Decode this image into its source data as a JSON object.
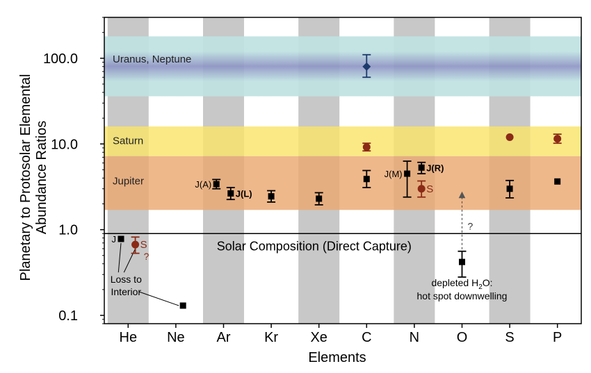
{
  "chart_data": {
    "type": "scatter",
    "title": "",
    "xlabel": "Elements",
    "ylabel_lines": [
      "Planetary to Protosolar Elemental",
      "Abundance Ratios"
    ],
    "y_scale": "log",
    "ylim": [
      0.08,
      300
    ],
    "yticks": [
      {
        "value": 0.1,
        "label": "0.1"
      },
      {
        "value": 1,
        "label": "1.0"
      },
      {
        "value": 10,
        "label": "10.0"
      },
      {
        "value": 100,
        "label": "100.0"
      }
    ],
    "categories": [
      "He",
      "Ne",
      "Ar",
      "Kr",
      "Xe",
      "C",
      "N",
      "O",
      "S",
      "P"
    ],
    "shaded_columns": [
      "He",
      "Ar",
      "Xe",
      "N",
      "S"
    ],
    "colors": {
      "jupiter": "#000000",
      "saturn": "#8b2a16",
      "ice_giant": "#1c3a6b",
      "column_shade": "#c8c8c8",
      "band_ice_outer": "#bfe2e2",
      "band_ice_core": "#8e95c4",
      "band_saturn": "#f9e46a",
      "band_jupiter": "#eca872"
    },
    "bands": [
      {
        "name": "Uranus, Neptune",
        "low": 36,
        "high": 180
      },
      {
        "name": "Saturn",
        "low": 7.2,
        "high": 16
      },
      {
        "name": "Jupiter",
        "low": 1.7,
        "high": 7.2
      }
    ],
    "reference_line": {
      "value": 0.9,
      "label": "Solar Composition (Direct Capture)"
    },
    "series": [
      {
        "name": "Jupiter",
        "marker": "square",
        "points": [
          {
            "x": "He",
            "y": 0.78,
            "label": "J",
            "offset": -0.15
          },
          {
            "x": "Ne",
            "y": 0.13,
            "offset": 0.15
          },
          {
            "x": "Ar",
            "y": 3.4,
            "err": [
              3.0,
              3.85
            ],
            "label": "J(A)",
            "offset": -0.15
          },
          {
            "x": "Ar",
            "y": 2.65,
            "err": [
              2.25,
              3.1
            ],
            "label": "J(L)",
            "offset": 0.15
          },
          {
            "x": "Kr",
            "y": 2.45,
            "err": [
              2.1,
              2.85
            ]
          },
          {
            "x": "Xe",
            "y": 2.3,
            "err": [
              1.95,
              2.7
            ]
          },
          {
            "x": "C",
            "y": 3.9,
            "err": [
              3.1,
              4.9
            ]
          },
          {
            "x": "N",
            "y": 4.5,
            "err": [
              2.4,
              6.3
            ],
            "label": "J(M)",
            "offset": -0.15
          },
          {
            "x": "N",
            "y": 5.3,
            "err": [
              4.5,
              6.1
            ],
            "label": "J(R)",
            "offset": 0.15
          },
          {
            "x": "O",
            "y": 0.42,
            "err": [
              0.28,
              0.56
            ]
          },
          {
            "x": "S",
            "y": 3.0,
            "err": [
              2.35,
              3.75
            ]
          },
          {
            "x": "P",
            "y": 3.65
          }
        ]
      },
      {
        "name": "Saturn",
        "marker": "circle",
        "points": [
          {
            "x": "He",
            "y": 0.67,
            "err": [
              0.53,
              0.82
            ],
            "label": "S",
            "offset": 0.15
          },
          {
            "x": "C",
            "y": 9.2,
            "err": [
              8.3,
              10.2
            ]
          },
          {
            "x": "N",
            "y": 3.0,
            "err": [
              2.4,
              3.7
            ],
            "label": "S",
            "offset": 0.15
          },
          {
            "x": "S",
            "y": 12
          },
          {
            "x": "P",
            "y": 11.5,
            "err": [
              10.2,
              13.0
            ]
          }
        ]
      },
      {
        "name": "Uranus, Neptune",
        "marker": "diamond",
        "points": [
          {
            "x": "C",
            "y": 80,
            "err": [
              60,
              110
            ]
          }
        ]
      }
    ],
    "annotations": {
      "he_question": "?",
      "loss_to_interior": [
        "Loss to",
        "Interior"
      ],
      "oxygen_question": "?",
      "depleted_water_prefix": "depleted H",
      "depleted_water_sub": "2",
      "depleted_water_suffix": "O:",
      "depleted_water_line2": "hot spot downwelling"
    }
  }
}
